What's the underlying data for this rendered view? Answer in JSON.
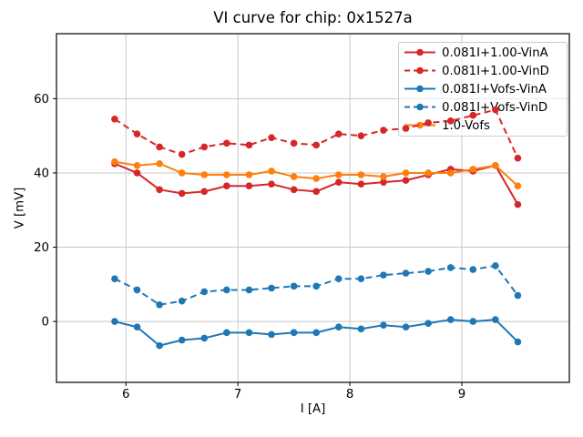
{
  "chart_data": {
    "type": "line",
    "title": "VI curve for chip: 0x1527a",
    "xlabel": "I [A]",
    "ylabel": "V [mV]",
    "xlim": [
      5.38,
      9.96
    ],
    "ylim": [
      -16.4,
      77.5
    ],
    "xticks": [
      6,
      7,
      8,
      9
    ],
    "yticks": [
      0,
      20,
      40,
      60
    ],
    "grid": true,
    "legend_position": "upper right",
    "x": [
      5.9,
      6.1,
      6.3,
      6.5,
      6.7,
      6.9,
      7.1,
      7.3,
      7.5,
      7.7,
      7.9,
      8.1,
      8.3,
      8.5,
      8.7,
      8.9,
      9.1,
      9.3,
      9.5
    ],
    "series": [
      {
        "name": "0.081I+1.00-VinA",
        "color": "#d62728",
        "line_style": "solid",
        "marker": "circle",
        "values": [
          42.5,
          40,
          35.5,
          34.5,
          35,
          36.5,
          36.5,
          37,
          35.5,
          35,
          37.5,
          37,
          37.5,
          38,
          39.5,
          41,
          40.5,
          42,
          31.5
        ]
      },
      {
        "name": "0.081I+1.00-VinD",
        "color": "#d62728",
        "line_style": "dashed",
        "marker": "circle",
        "values": [
          54.5,
          50.5,
          47,
          45,
          47,
          48,
          47.5,
          49.5,
          48,
          47.5,
          50.5,
          50,
          51.5,
          52,
          53.5,
          54,
          55.5,
          57,
          44
        ]
      },
      {
        "name": "0.081I+Vofs-VinA",
        "color": "#1f77b4",
        "line_style": "solid",
        "marker": "circle",
        "values": [
          0,
          -1.5,
          -6.5,
          -5,
          -4.5,
          -3,
          -3,
          -3.5,
          -3,
          -3,
          -1.5,
          -2,
          -1,
          -1.5,
          -0.5,
          0.5,
          0,
          0.5,
          -5.5
        ]
      },
      {
        "name": "0.081I+Vofs-VinD",
        "color": "#1f77b4",
        "line_style": "dashed",
        "marker": "circle",
        "values": [
          11.5,
          8.5,
          4.5,
          5.5,
          8,
          8.5,
          8.5,
          9,
          9.5,
          9.5,
          11.5,
          11.5,
          12.5,
          13,
          13.5,
          14.5,
          14,
          15,
          7
        ]
      },
      {
        "name": "1.0-Vofs",
        "color": "#ff7f0e",
        "line_style": "solid",
        "marker": "circle",
        "values": [
          43,
          42,
          42.5,
          40,
          39.5,
          39.5,
          39.5,
          40.5,
          39,
          38.5,
          39.5,
          39.5,
          39,
          40,
          40,
          40,
          41,
          42,
          36.5
        ]
      }
    ],
    "style": {
      "grid_color": "#c8c8c8",
      "spine_color": "#000000",
      "legend_border_color": "#cccccc",
      "legend_background": "rgba(255,255,255,0.6)"
    }
  }
}
